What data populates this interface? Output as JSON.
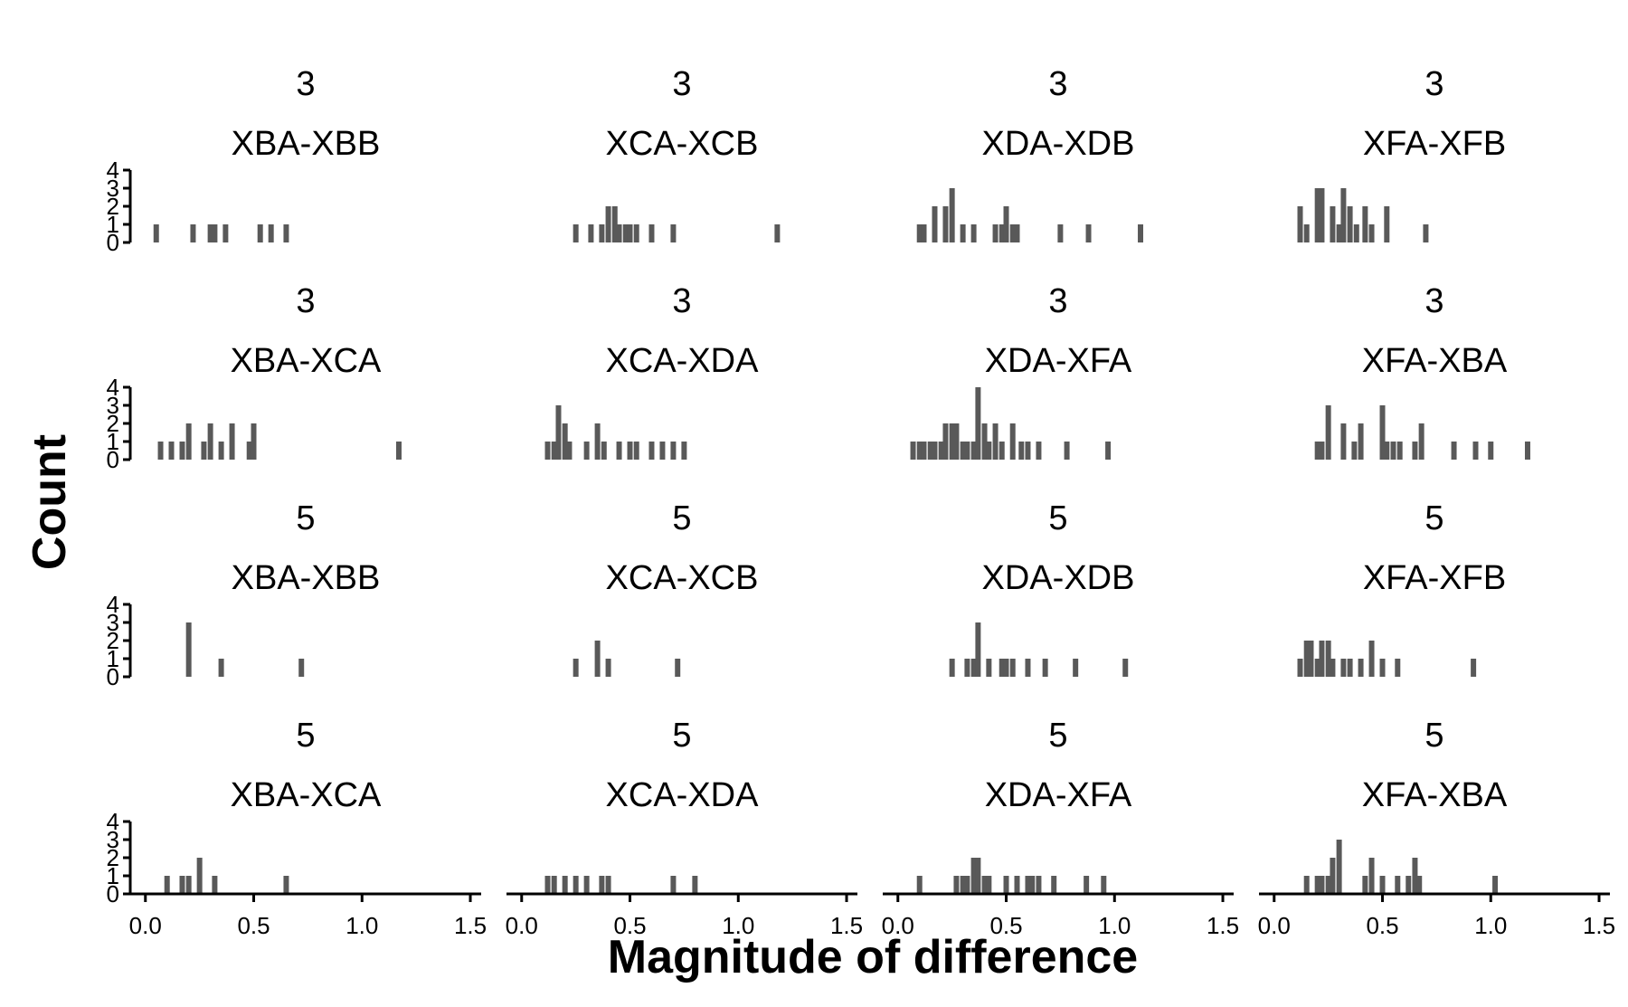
{
  "chart_data": {
    "type": "bar",
    "subtype": "faceted-histogram",
    "xlabel": "Magnitude of difference",
    "ylabel": "Count",
    "xlim": [
      -0.07,
      1.55
    ],
    "ylim": [
      0,
      4
    ],
    "x_ticks": [
      0.0,
      0.5,
      1.0,
      1.5
    ],
    "x_tick_labels": [
      "0.0",
      "0.5",
      "1.0",
      "1.5"
    ],
    "y_ticks": [
      0,
      1,
      2,
      3,
      4
    ],
    "y_tick_labels": [
      "0",
      "1",
      "2",
      "3",
      "4"
    ],
    "bar_color": "#595959",
    "binwidth": 0.025,
    "grid": false,
    "panels": [
      {
        "row": 0,
        "col": 0,
        "group": "3",
        "pair": "XBA-XBB",
        "bins": [
          [
            0.05,
            1
          ],
          [
            0.22,
            1
          ],
          [
            0.3,
            1
          ],
          [
            0.32,
            1
          ],
          [
            0.37,
            1
          ],
          [
            0.53,
            1
          ],
          [
            0.58,
            1
          ],
          [
            0.65,
            1
          ]
        ]
      },
      {
        "row": 0,
        "col": 1,
        "group": "3",
        "pair": "XCA-XCB",
        "bins": [
          [
            0.25,
            1
          ],
          [
            0.32,
            1
          ],
          [
            0.37,
            1
          ],
          [
            0.4,
            2
          ],
          [
            0.43,
            2
          ],
          [
            0.45,
            1
          ],
          [
            0.48,
            1
          ],
          [
            0.5,
            1
          ],
          [
            0.53,
            1
          ],
          [
            0.6,
            1
          ],
          [
            0.7,
            1
          ],
          [
            1.18,
            1
          ]
        ]
      },
      {
        "row": 0,
        "col": 2,
        "group": "3",
        "pair": "XDA-XDB",
        "bins": [
          [
            0.1,
            1
          ],
          [
            0.12,
            1
          ],
          [
            0.17,
            2
          ],
          [
            0.22,
            2
          ],
          [
            0.25,
            3
          ],
          [
            0.3,
            1
          ],
          [
            0.35,
            1
          ],
          [
            0.45,
            1
          ],
          [
            0.48,
            1
          ],
          [
            0.5,
            2
          ],
          [
            0.53,
            1
          ],
          [
            0.55,
            1
          ],
          [
            0.75,
            1
          ],
          [
            0.88,
            1
          ],
          [
            1.12,
            1
          ]
        ]
      },
      {
        "row": 0,
        "col": 3,
        "group": "3",
        "pair": "XFA-XFB",
        "bins": [
          [
            0.12,
            2
          ],
          [
            0.15,
            1
          ],
          [
            0.2,
            3
          ],
          [
            0.22,
            3
          ],
          [
            0.27,
            2
          ],
          [
            0.3,
            1
          ],
          [
            0.32,
            3
          ],
          [
            0.35,
            2
          ],
          [
            0.38,
            1
          ],
          [
            0.42,
            2
          ],
          [
            0.45,
            1
          ],
          [
            0.52,
            2
          ],
          [
            0.7,
            1
          ]
        ]
      },
      {
        "row": 1,
        "col": 0,
        "group": "3",
        "pair": "XBA-XCA",
        "bins": [
          [
            0.07,
            1
          ],
          [
            0.12,
            1
          ],
          [
            0.17,
            1
          ],
          [
            0.2,
            2
          ],
          [
            0.27,
            1
          ],
          [
            0.3,
            2
          ],
          [
            0.35,
            1
          ],
          [
            0.4,
            2
          ],
          [
            0.48,
            1
          ],
          [
            0.5,
            2
          ],
          [
            1.17,
            1
          ]
        ]
      },
      {
        "row": 1,
        "col": 1,
        "group": "3",
        "pair": "XCA-XDA",
        "bins": [
          [
            0.12,
            1
          ],
          [
            0.15,
            1
          ],
          [
            0.17,
            3
          ],
          [
            0.2,
            2
          ],
          [
            0.22,
            1
          ],
          [
            0.3,
            1
          ],
          [
            0.35,
            2
          ],
          [
            0.38,
            1
          ],
          [
            0.45,
            1
          ],
          [
            0.5,
            1
          ],
          [
            0.53,
            1
          ],
          [
            0.6,
            1
          ],
          [
            0.65,
            1
          ],
          [
            0.7,
            1
          ],
          [
            0.75,
            1
          ]
        ]
      },
      {
        "row": 1,
        "col": 2,
        "group": "3",
        "pair": "XDA-XFA",
        "bins": [
          [
            0.07,
            1
          ],
          [
            0.1,
            1
          ],
          [
            0.12,
            1
          ],
          [
            0.15,
            1
          ],
          [
            0.17,
            1
          ],
          [
            0.2,
            1
          ],
          [
            0.22,
            2
          ],
          [
            0.25,
            2
          ],
          [
            0.27,
            2
          ],
          [
            0.3,
            1
          ],
          [
            0.32,
            1
          ],
          [
            0.35,
            1
          ],
          [
            0.37,
            4
          ],
          [
            0.4,
            2
          ],
          [
            0.42,
            1
          ],
          [
            0.45,
            2
          ],
          [
            0.48,
            1
          ],
          [
            0.53,
            2
          ],
          [
            0.57,
            1
          ],
          [
            0.6,
            1
          ],
          [
            0.65,
            1
          ],
          [
            0.78,
            1
          ],
          [
            0.97,
            1
          ]
        ]
      },
      {
        "row": 1,
        "col": 3,
        "group": "3",
        "pair": "XFA-XBA",
        "bins": [
          [
            0.2,
            1
          ],
          [
            0.22,
            1
          ],
          [
            0.25,
            3
          ],
          [
            0.32,
            2
          ],
          [
            0.37,
            1
          ],
          [
            0.4,
            2
          ],
          [
            0.5,
            3
          ],
          [
            0.52,
            1
          ],
          [
            0.55,
            1
          ],
          [
            0.58,
            1
          ],
          [
            0.65,
            1
          ],
          [
            0.68,
            2
          ],
          [
            0.83,
            1
          ],
          [
            0.93,
            1
          ],
          [
            1.0,
            1
          ],
          [
            1.17,
            1
          ]
        ]
      },
      {
        "row": 2,
        "col": 0,
        "group": "5",
        "pair": "XBA-XBB",
        "bins": [
          [
            0.2,
            3
          ],
          [
            0.35,
            1
          ],
          [
            0.72,
            1
          ]
        ]
      },
      {
        "row": 2,
        "col": 1,
        "group": "5",
        "pair": "XCA-XCB",
        "bins": [
          [
            0.25,
            1
          ],
          [
            0.35,
            2
          ],
          [
            0.4,
            1
          ],
          [
            0.72,
            1
          ]
        ]
      },
      {
        "row": 2,
        "col": 2,
        "group": "5",
        "pair": "XDA-XDB",
        "bins": [
          [
            0.25,
            1
          ],
          [
            0.32,
            1
          ],
          [
            0.35,
            1
          ],
          [
            0.37,
            3
          ],
          [
            0.42,
            1
          ],
          [
            0.48,
            1
          ],
          [
            0.5,
            1
          ],
          [
            0.53,
            1
          ],
          [
            0.6,
            1
          ],
          [
            0.68,
            1
          ],
          [
            0.82,
            1
          ],
          [
            1.05,
            1
          ]
        ]
      },
      {
        "row": 2,
        "col": 3,
        "group": "5",
        "pair": "XFA-XFB",
        "bins": [
          [
            0.12,
            1
          ],
          [
            0.15,
            2
          ],
          [
            0.17,
            2
          ],
          [
            0.2,
            1
          ],
          [
            0.22,
            2
          ],
          [
            0.25,
            2
          ],
          [
            0.27,
            1
          ],
          [
            0.32,
            1
          ],
          [
            0.35,
            1
          ],
          [
            0.4,
            1
          ],
          [
            0.45,
            2
          ],
          [
            0.5,
            1
          ],
          [
            0.57,
            1
          ],
          [
            0.92,
            1
          ]
        ]
      },
      {
        "row": 3,
        "col": 0,
        "group": "5",
        "pair": "XBA-XCA",
        "bins": [
          [
            0.1,
            1
          ],
          [
            0.17,
            1
          ],
          [
            0.2,
            1
          ],
          [
            0.25,
            2
          ],
          [
            0.32,
            1
          ],
          [
            0.65,
            1
          ]
        ]
      },
      {
        "row": 3,
        "col": 1,
        "group": "5",
        "pair": "XCA-XDA",
        "bins": [
          [
            0.12,
            1
          ],
          [
            0.15,
            1
          ],
          [
            0.2,
            1
          ],
          [
            0.25,
            1
          ],
          [
            0.3,
            1
          ],
          [
            0.37,
            1
          ],
          [
            0.4,
            1
          ],
          [
            0.7,
            1
          ],
          [
            0.8,
            1
          ]
        ]
      },
      {
        "row": 3,
        "col": 2,
        "group": "5",
        "pair": "XDA-XFA",
        "bins": [
          [
            0.1,
            1
          ],
          [
            0.27,
            1
          ],
          [
            0.3,
            1
          ],
          [
            0.32,
            1
          ],
          [
            0.35,
            2
          ],
          [
            0.37,
            2
          ],
          [
            0.4,
            1
          ],
          [
            0.42,
            1
          ],
          [
            0.5,
            1
          ],
          [
            0.55,
            1
          ],
          [
            0.6,
            1
          ],
          [
            0.62,
            1
          ],
          [
            0.65,
            1
          ],
          [
            0.72,
            1
          ],
          [
            0.87,
            1
          ],
          [
            0.95,
            1
          ]
        ]
      },
      {
        "row": 3,
        "col": 3,
        "group": "5",
        "pair": "XFA-XBA",
        "bins": [
          [
            0.15,
            1
          ],
          [
            0.2,
            1
          ],
          [
            0.22,
            1
          ],
          [
            0.25,
            1
          ],
          [
            0.27,
            2
          ],
          [
            0.3,
            3
          ],
          [
            0.42,
            1
          ],
          [
            0.45,
            2
          ],
          [
            0.5,
            1
          ],
          [
            0.57,
            1
          ],
          [
            0.62,
            1
          ],
          [
            0.65,
            2
          ],
          [
            0.67,
            1
          ],
          [
            1.02,
            1
          ]
        ]
      }
    ]
  }
}
